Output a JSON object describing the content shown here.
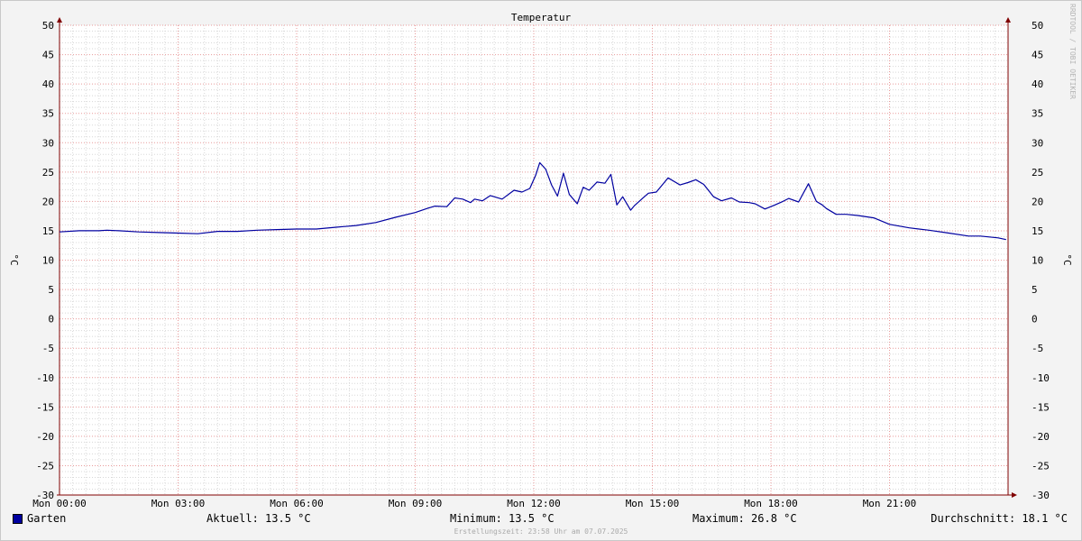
{
  "chart_data": {
    "type": "line",
    "title": "Temperatur",
    "ylabel": "°C",
    "ylim": [
      -30,
      50
    ],
    "y_ticks": [
      50,
      45,
      40,
      35,
      30,
      25,
      20,
      15,
      10,
      5,
      0,
      -5,
      -10,
      -15,
      -20,
      -25,
      -30
    ],
    "x_ticks": [
      "Mon 00:00",
      "Mon 03:00",
      "Mon 06:00",
      "Mon 09:00",
      "Mon 12:00",
      "Mon 15:00",
      "Mon 18:00",
      "Mon 21:00"
    ],
    "xlim_hours": [
      0,
      24
    ],
    "series": [
      {
        "name": "Garten",
        "color": "#0000a0",
        "x_hours": [
          0,
          0.5,
          1,
          1.2,
          1.5,
          2,
          2.5,
          3,
          3.5,
          4,
          4.5,
          5,
          5.5,
          6,
          6.5,
          7,
          7.5,
          8,
          8.5,
          9,
          9.3,
          9.5,
          9.8,
          10,
          10.2,
          10.4,
          10.5,
          10.7,
          10.9,
          11.2,
          11.5,
          11.7,
          11.9,
          12.05,
          12.15,
          12.3,
          12.45,
          12.6,
          12.75,
          12.9,
          13.1,
          13.25,
          13.4,
          13.6,
          13.8,
          13.95,
          14.1,
          14.25,
          14.45,
          14.55,
          14.75,
          14.9,
          15.1,
          15.4,
          15.7,
          15.9,
          16.1,
          16.3,
          16.55,
          16.75,
          17,
          17.2,
          17.45,
          17.6,
          17.85,
          18.1,
          18.3,
          18.45,
          18.7,
          18.95,
          19.15,
          19.3,
          19.4,
          19.5,
          19.65,
          19.9,
          20.2,
          20.6,
          21,
          21.5,
          22,
          22.5,
          23,
          23.3,
          23.75,
          23.95
        ],
        "values": [
          14.8,
          15,
          15,
          15.1,
          15,
          14.8,
          14.7,
          14.6,
          14.5,
          14.9,
          14.9,
          15.1,
          15.2,
          15.3,
          15.3,
          15.6,
          15.9,
          16.4,
          17.3,
          18.1,
          18.8,
          19.2,
          19.1,
          20.6,
          20.4,
          19.8,
          20.4,
          20.1,
          21,
          20.4,
          21.9,
          21.6,
          22.2,
          24.5,
          26.6,
          25.5,
          22.8,
          20.9,
          24.8,
          21.2,
          19.6,
          22.4,
          21.9,
          23.3,
          23.1,
          24.6,
          19.4,
          20.8,
          18.5,
          19.3,
          20.5,
          21.4,
          21.6,
          24,
          22.8,
          23.2,
          23.7,
          22.9,
          20.8,
          20.1,
          20.6,
          19.9,
          19.8,
          19.6,
          18.7,
          19.4,
          20,
          20.5,
          19.9,
          23,
          20,
          19.4,
          18.8,
          18.4,
          17.8,
          17.8,
          17.6,
          17.2,
          16.1,
          15.5,
          15.1,
          14.6,
          14.1,
          14.1,
          13.8,
          13.5
        ]
      }
    ]
  },
  "legend": {
    "series_name": "Garten",
    "current": "Aktuell: 13.5 °C",
    "minimum": "Minimum: 13.5 °C",
    "maximum": "Maximum: 26.8 °C",
    "average": "Durchschnitt: 18.1 °C"
  },
  "footer": {
    "created": "Erstellungszeit: 23:58 Uhr am 07.07.2025"
  },
  "watermark": "RRDTOOL / TOBI OETIKER",
  "colors": {
    "series": "#0000a0",
    "major_grid": "#e89a9a",
    "minor_grid": "#d8d8d8",
    "axis": "#800000",
    "background": "#f3f3f3"
  }
}
